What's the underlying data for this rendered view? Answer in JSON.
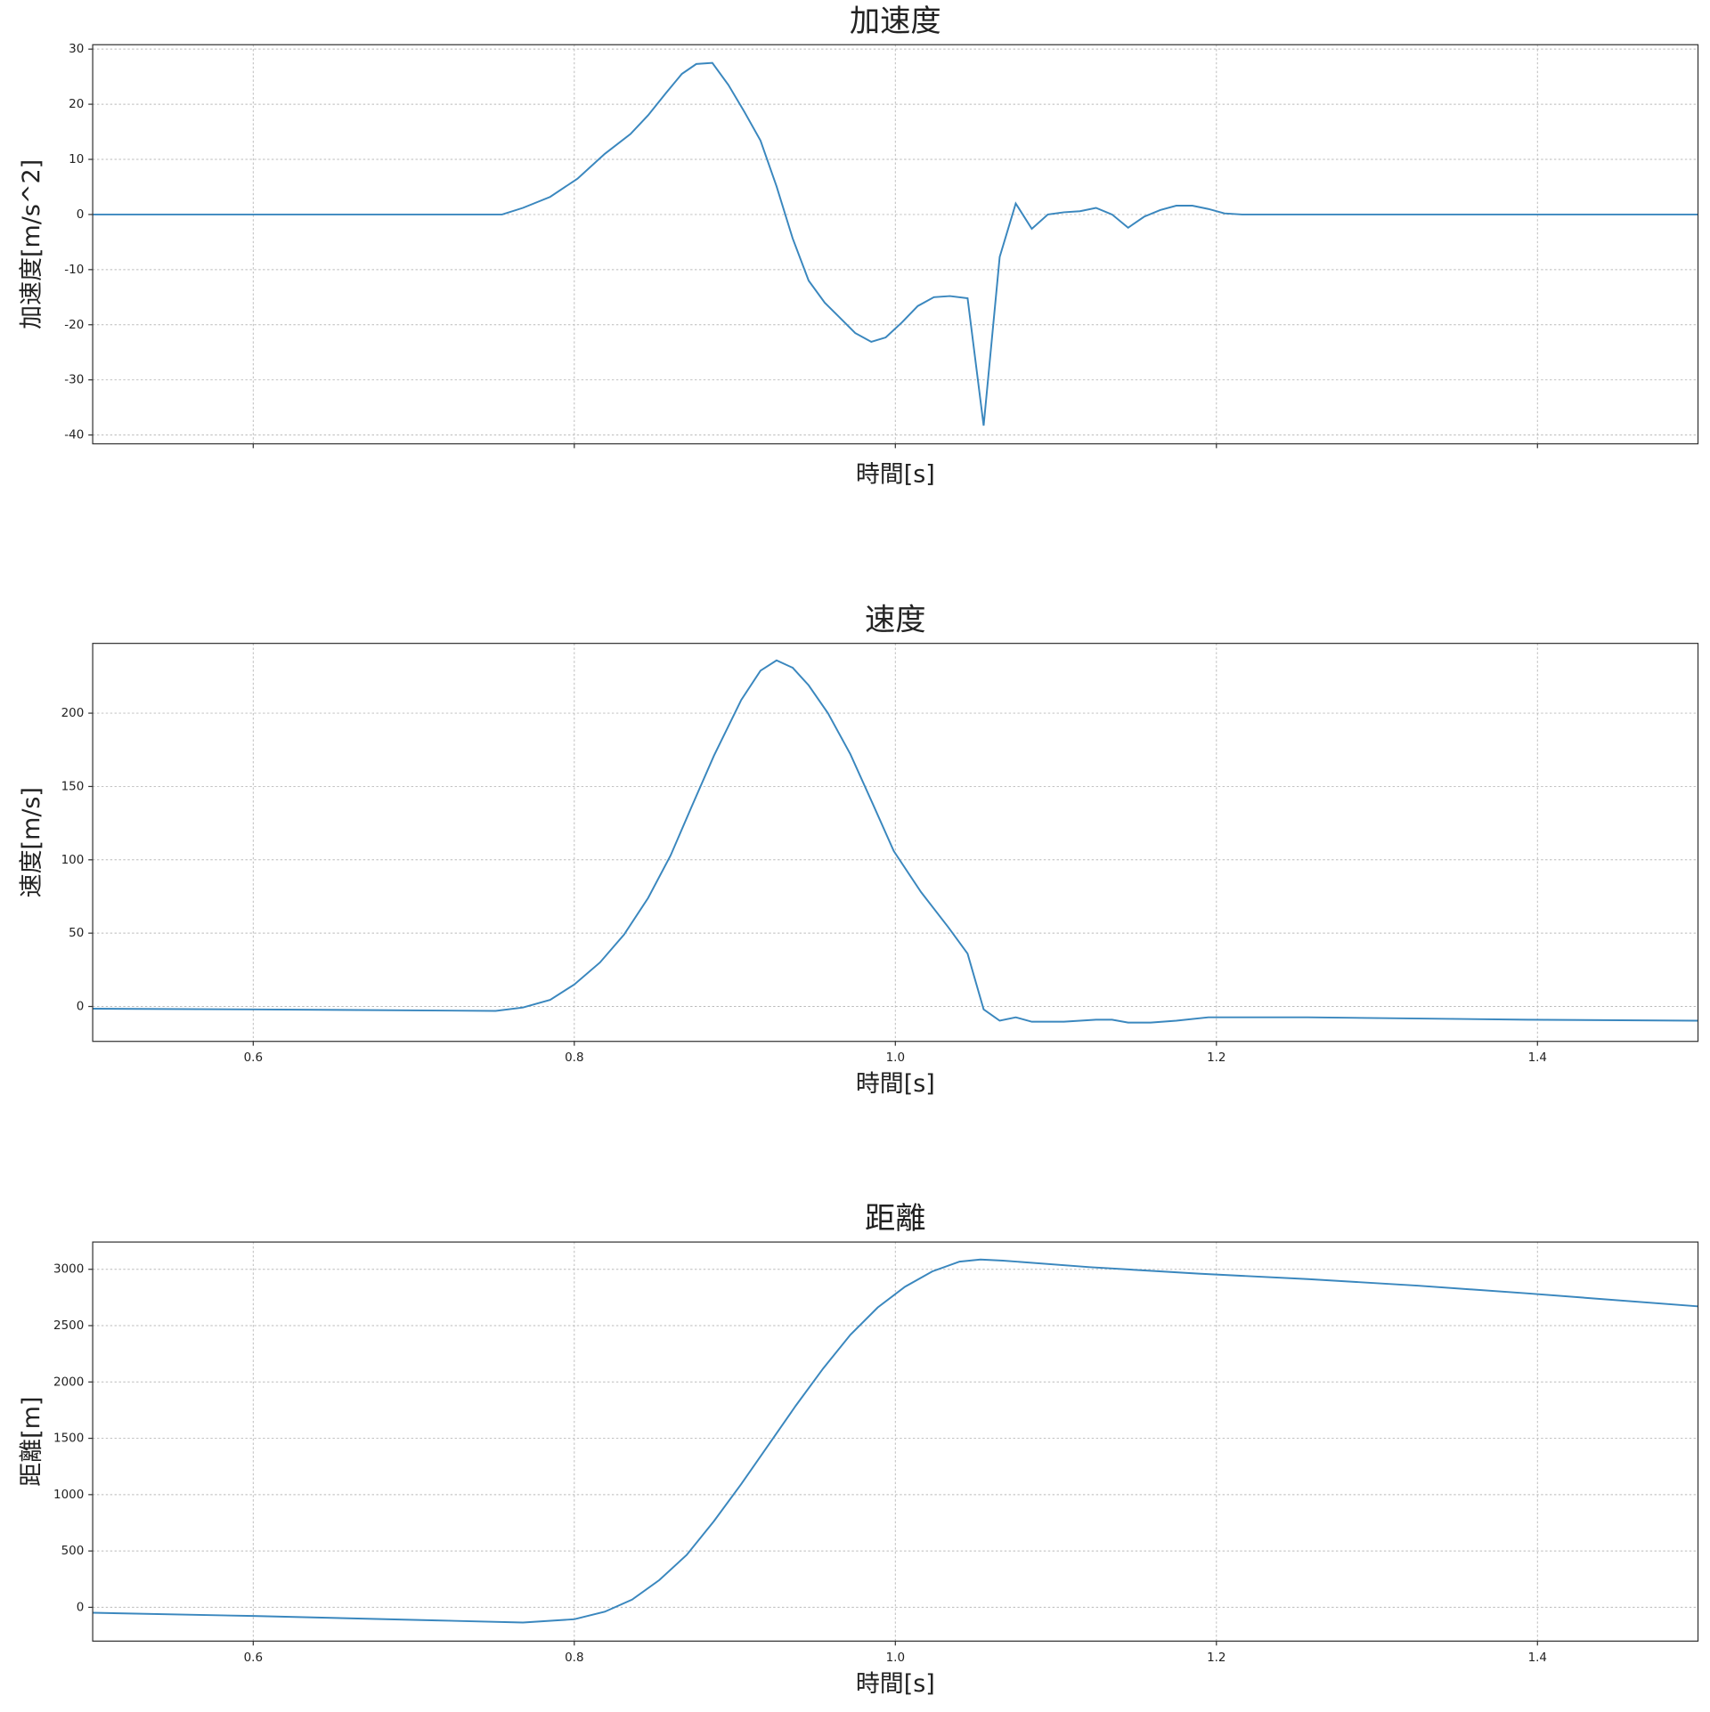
{
  "chart_data": [
    {
      "type": "line",
      "title": "加速度",
      "xlabel": "時間[s]",
      "ylabel": "加速度[m/s^2]",
      "xlim": [
        0.5,
        1.5
      ],
      "ylim": [
        -41.6,
        30.8
      ],
      "xticks": [
        0.6,
        0.8,
        {
          "value": 1,
          "label": "1.0"
        },
        1.2,
        1.4
      ],
      "xtick_labels": false,
      "yticks": [
        -40,
        -30,
        -20,
        -10,
        0,
        10,
        20,
        30
      ],
      "grid": true,
      "series": [
        {
          "color": "#3a87be",
          "x": [
            0.5,
            0.755,
            0.768,
            0.785,
            0.802,
            0.819,
            0.835,
            0.846,
            0.857,
            0.867,
            0.876,
            0.886,
            0.896,
            0.906,
            0.916,
            0.926,
            0.936,
            0.946,
            0.956,
            0.965,
            0.975,
            0.985,
            0.994,
            1.004,
            1.014,
            1.024,
            1.034,
            1.045,
            1.055,
            1.065,
            1.075,
            1.085,
            1.095,
            1.105,
            1.115,
            1.125,
            1.135,
            1.145,
            1.155,
            1.165,
            1.175,
            1.185,
            1.195,
            1.205,
            1.216,
            1.5
          ],
          "values": [
            0,
            0,
            1.2,
            3.2,
            6.5,
            11,
            14.6,
            18,
            22,
            25.5,
            27.3,
            27.5,
            23.5,
            18.6,
            13.4,
            5.1,
            -4.3,
            -12,
            -16,
            -18.6,
            -21.5,
            -23.1,
            -22.3,
            -19.6,
            -16.6,
            -15,
            -14.8,
            -15.2,
            -38.3,
            -7.7,
            2,
            -2.6,
            0,
            0.4,
            0.6,
            1.2,
            0,
            -2.4,
            -0.4,
            0.8,
            1.6,
            1.6,
            1,
            0.2,
            0,
            0
          ]
        }
      ]
    },
    {
      "type": "line",
      "title": "速度",
      "xlabel": "時間[s]",
      "ylabel": "速度[m/s]",
      "xlim": [
        0.5,
        1.5
      ],
      "ylim": [
        -23.8,
        247.6
      ],
      "xticks": [
        0.6,
        0.8,
        {
          "value": 1,
          "label": "1.0"
        },
        1.2,
        1.4
      ],
      "xtick_labels": true,
      "yticks": [
        0,
        50,
        100,
        150,
        200
      ],
      "grid": true,
      "series": [
        {
          "color": "#3a87be",
          "x": [
            0.5,
            0.6,
            0.751,
            0.768,
            0.785,
            0.8,
            0.816,
            0.831,
            0.846,
            0.86,
            0.873,
            0.887,
            0.904,
            0.916,
            0.926,
            0.936,
            0.946,
            0.958,
            0.972,
            0.986,
            0.999,
            1.016,
            1.033,
            1.045,
            1.055,
            1.065,
            1.075,
            1.085,
            1.105,
            1.125,
            1.135,
            1.145,
            1.159,
            1.175,
            1.195,
            1.257,
            1.393,
            1.5
          ],
          "values": [
            -1.5,
            -2,
            -3,
            -0.7,
            4.5,
            15,
            30,
            49,
            74,
            103,
            136,
            171,
            209,
            229,
            236,
            231,
            219,
            200,
            172,
            138,
            106,
            78,
            54,
            36,
            -2,
            -9.7,
            -7.4,
            -10.4,
            -10.4,
            -9,
            -9,
            -11,
            -11,
            -9.7,
            -7.4,
            -7.4,
            -9,
            -9.7
          ]
        }
      ]
    },
    {
      "type": "line",
      "title": "距離",
      "xlabel": "時間[s]",
      "ylabel": "距離[m]",
      "xlim": [
        0.5,
        1.5
      ],
      "ylim": [
        -300,
        3242
      ],
      "xticks": [
        0.6,
        0.8,
        {
          "value": 1,
          "label": "1.0"
        },
        1.2,
        1.4
      ],
      "xtick_labels": true,
      "yticks": [
        0,
        500,
        1000,
        1500,
        2000,
        2500,
        3000
      ],
      "grid": true,
      "series": [
        {
          "color": "#3a87be",
          "x": [
            0.5,
            0.6,
            0.714,
            0.768,
            0.8,
            0.819,
            0.836,
            0.853,
            0.87,
            0.887,
            0.904,
            0.921,
            0.938,
            0.955,
            0.972,
            0.989,
            1.006,
            1.023,
            1.04,
            1.053,
            1.067,
            1.121,
            1.189,
            1.257,
            1.325,
            1.393,
            1.5
          ],
          "values": [
            -48,
            -77,
            -116,
            -135,
            -106,
            -39,
            68,
            242,
            465,
            765,
            1094,
            1442,
            1790,
            2119,
            2419,
            2661,
            2845,
            2981,
            3068,
            3087,
            3077,
            3019,
            2961,
            2913,
            2855,
            2787,
            2671
          ]
        }
      ]
    }
  ]
}
